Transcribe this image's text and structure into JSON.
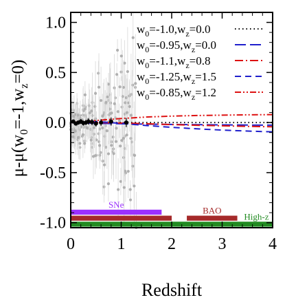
{
  "chart_data": {
    "type": "line",
    "xlabel": "Redshift",
    "ylabel_prefix": "μ-μ(w",
    "ylabel_sub1": "0",
    "ylabel_mid": "=-1,w",
    "ylabel_sub2": "z",
    "ylabel_suffix": "=0)",
    "xlim": [
      0,
      4
    ],
    "ylim": [
      -1.05,
      1.1
    ],
    "xticks": [
      {
        "value": 0,
        "label": "0"
      },
      {
        "value": 1,
        "label": "1"
      },
      {
        "value": 2,
        "label": "2"
      },
      {
        "value": 3,
        "label": "3"
      },
      {
        "value": 4,
        "label": "4"
      }
    ],
    "yticks": [
      {
        "value": 1.0,
        "label": "1.0"
      },
      {
        "value": 0.5,
        "label": "0.5"
      },
      {
        "value": 0.0,
        "label": "0.0"
      },
      {
        "value": -0.5,
        "label": "-0.5"
      },
      {
        "value": -1.0,
        "label": "-1.0"
      }
    ],
    "legend_position": "top-right",
    "series": [
      {
        "w0": "-1.0",
        "wz": "0.0",
        "color": "#000000",
        "dash": "1.5,4",
        "x": [
          0,
          0.5,
          1,
          1.5,
          2,
          2.5,
          3,
          3.5,
          4
        ],
        "y": [
          0,
          0,
          0,
          0,
          0,
          0,
          0,
          0,
          0
        ]
      },
      {
        "w0": "-0.95",
        "wz": "0.0",
        "color": "#1f1fcc",
        "dash": "16,6",
        "x": [
          0,
          0.5,
          1,
          1.5,
          2,
          2.5,
          3,
          3.5,
          4
        ],
        "y": [
          0,
          -0.007,
          -0.012,
          -0.016,
          -0.019,
          -0.021,
          -0.023,
          -0.025,
          -0.026
        ]
      },
      {
        "w0": "-1.1",
        "wz": "0.8",
        "color": "#dd1111",
        "dash": "12,4,2,4",
        "x": [
          0,
          0.5,
          1,
          1.5,
          2,
          2.5,
          3,
          3.5,
          4
        ],
        "y": [
          0,
          0.0,
          -0.005,
          -0.012,
          -0.02,
          -0.027,
          -0.033,
          -0.038,
          -0.042
        ]
      },
      {
        "w0": "-1.25",
        "wz": "1.5",
        "color": "#1f1fcc",
        "dash": "9,6",
        "x": [
          0,
          0.5,
          1,
          1.5,
          2,
          2.5,
          3,
          3.5,
          4
        ],
        "y": [
          0,
          0.01,
          -0.008,
          -0.03,
          -0.048,
          -0.063,
          -0.075,
          -0.085,
          -0.093
        ]
      },
      {
        "w0": "-0.85",
        "wz": "1.2",
        "color": "#dd1111",
        "dash": "9,3,2,3,2,3",
        "x": [
          0,
          0.5,
          1,
          1.5,
          2,
          2.5,
          3,
          3.5,
          4
        ],
        "y": [
          0,
          0.02,
          0.04,
          0.055,
          0.064,
          0.07,
          0.074,
          0.077,
          0.079
        ]
      }
    ],
    "bands": [
      {
        "label": "SNe",
        "x": [
          0.0,
          1.8
        ],
        "y": [
          -0.87,
          -0.92
        ],
        "color": "#9b30ff",
        "label_color": "#9b30ff",
        "label_x": 0.9
      },
      {
        "label": "BAO",
        "x": [
          0.0,
          2.0
        ],
        "y": [
          -0.93,
          -0.98
        ],
        "color": "#a52a2a",
        "label_color": "#a52a2a",
        "label_x": null
      },
      {
        "label": "BAO",
        "x": [
          2.3,
          3.3
        ],
        "y": [
          -0.93,
          -0.98
        ],
        "color": "#a52a2a",
        "label_color": "#a52a2a",
        "label_x": 2.8
      },
      {
        "label": "High-z",
        "x": [
          0.0,
          4.0
        ],
        "y": [
          -0.99,
          -1.04
        ],
        "color": "#228b22",
        "label_color": "#228b22",
        "label_x": 3.68
      }
    ],
    "binned_points": [
      {
        "x": 0.05,
        "y": 0.01,
        "err": 0.02
      },
      {
        "x": 0.1,
        "y": -0.01,
        "err": 0.02
      },
      {
        "x": 0.15,
        "y": 0.0,
        "err": 0.02
      },
      {
        "x": 0.2,
        "y": 0.01,
        "err": 0.025
      },
      {
        "x": 0.25,
        "y": -0.005,
        "err": 0.025
      },
      {
        "x": 0.3,
        "y": 0.0,
        "err": 0.025
      },
      {
        "x": 0.35,
        "y": 0.01,
        "err": 0.03
      },
      {
        "x": 0.42,
        "y": 0.005,
        "err": 0.03
      },
      {
        "x": 0.5,
        "y": -0.01,
        "err": 0.03
      },
      {
        "x": 0.6,
        "y": 0.0,
        "err": 0.035
      },
      {
        "x": 0.8,
        "y": 0.01,
        "err": 0.04
      },
      {
        "x": 1.1,
        "y": 0.0,
        "err": 0.045
      }
    ]
  }
}
